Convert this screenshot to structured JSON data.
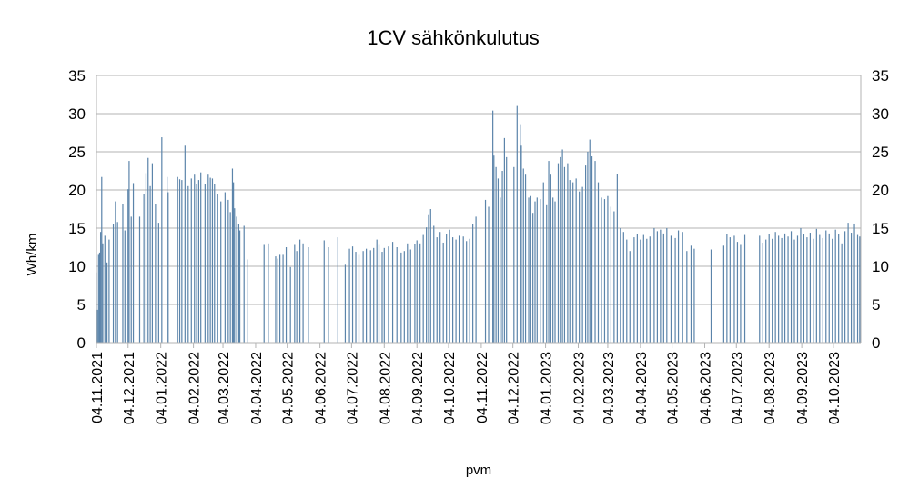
{
  "chart_data": {
    "type": "bar",
    "title": "1CV sähkönkulutus",
    "xlabel": "pvm",
    "ylabel": "Wh/km",
    "ylim": [
      0,
      35
    ],
    "y_ticks": [
      "0",
      "5",
      "10",
      "15",
      "20",
      "25",
      "30",
      "35"
    ],
    "secondary_y_axis": true,
    "grid": "horizontal",
    "x_range": [
      "2021-11-04",
      "2023-10-30"
    ],
    "x_tick_labels": [
      "04.11.2021",
      "04.12.2021",
      "04.01.2022",
      "04.02.2022",
      "04.03.2022",
      "04.04.2022",
      "04.05.2022",
      "04.06.2022",
      "04.07.2022",
      "04.08.2022",
      "04.09.2022",
      "04.10.2022",
      "04.11.2022",
      "04.12.2022",
      "04.01.2023",
      "04.02.2023",
      "04.03.2023",
      "04.04.2023",
      "04.05.2023",
      "04.06.2023",
      "04.07.2023",
      "04.08.2023",
      "04.09.2023",
      "04.10.2023"
    ],
    "x_tick_dates": [
      "2021-11-04",
      "2021-12-04",
      "2022-01-04",
      "2022-02-04",
      "2022-03-04",
      "2022-04-04",
      "2022-05-04",
      "2022-06-04",
      "2022-07-04",
      "2022-08-04",
      "2022-09-04",
      "2022-10-04",
      "2022-11-04",
      "2022-12-04",
      "2023-01-04",
      "2023-02-04",
      "2023-03-04",
      "2023-04-04",
      "2023-05-04",
      "2023-06-04",
      "2023-07-04",
      "2023-08-04",
      "2023-09-04",
      "2023-10-04"
    ],
    "bar_color": "#5b84aa",
    "points": [
      [
        "2021-11-04",
        9.2
      ],
      [
        "2021-11-05",
        4.3
      ],
      [
        "2021-11-06",
        11.5
      ],
      [
        "2021-11-07",
        11.8
      ],
      [
        "2021-11-08",
        14.5
      ],
      [
        "2021-11-09",
        21.7
      ],
      [
        "2021-11-10",
        13.0
      ],
      [
        "2021-11-12",
        14.0
      ],
      [
        "2021-11-14",
        10.5
      ],
      [
        "2021-11-16",
        13.5
      ],
      [
        "2021-11-20",
        15.5
      ],
      [
        "2021-11-22",
        18.5
      ],
      [
        "2021-11-24",
        15.8
      ],
      [
        "2021-11-29",
        18.1
      ],
      [
        "2021-12-01",
        14.7
      ],
      [
        "2021-12-04",
        20.1
      ],
      [
        "2021-12-05",
        23.8
      ],
      [
        "2021-12-07",
        16.5
      ],
      [
        "2021-12-09",
        20.9
      ],
      [
        "2021-12-15",
        16.5
      ],
      [
        "2021-12-19",
        19.5
      ],
      [
        "2021-12-21",
        22.2
      ],
      [
        "2021-12-23",
        24.2
      ],
      [
        "2021-12-25",
        20.5
      ],
      [
        "2021-12-27",
        23.5
      ],
      [
        "2021-12-30",
        18.1
      ],
      [
        "2022-01-02",
        15.7
      ],
      [
        "2022-01-05",
        26.9
      ],
      [
        "2022-01-10",
        21.7
      ],
      [
        "2022-01-11",
        19.7
      ],
      [
        "2022-01-20",
        21.7
      ],
      [
        "2022-01-22",
        21.4
      ],
      [
        "2022-01-24",
        21.3
      ],
      [
        "2022-01-27",
        25.8
      ],
      [
        "2022-01-30",
        20.5
      ],
      [
        "2022-02-02",
        21.5
      ],
      [
        "2022-02-05",
        22.0
      ],
      [
        "2022-02-07",
        20.8
      ],
      [
        "2022-02-09",
        21.3
      ],
      [
        "2022-02-11",
        22.3
      ],
      [
        "2022-02-15",
        20.8
      ],
      [
        "2022-02-18",
        22.0
      ],
      [
        "2022-02-20",
        21.6
      ],
      [
        "2022-02-22",
        21.5
      ],
      [
        "2022-02-24",
        20.8
      ],
      [
        "2022-02-27",
        19.5
      ],
      [
        "2022-03-02",
        18.5
      ],
      [
        "2022-03-06",
        19.7
      ],
      [
        "2022-03-09",
        18.7
      ],
      [
        "2022-03-11",
        17.1
      ],
      [
        "2022-03-13",
        22.8
      ],
      [
        "2022-03-14",
        21.0
      ],
      [
        "2022-03-15",
        17.6
      ],
      [
        "2022-03-17",
        16.5
      ],
      [
        "2022-03-19",
        15.5
      ],
      [
        "2022-03-20",
        14.7
      ],
      [
        "2022-03-24",
        15.3
      ],
      [
        "2022-03-27",
        10.9
      ],
      [
        "2022-04-12",
        12.8
      ],
      [
        "2022-04-16",
        13.0
      ],
      [
        "2022-04-23",
        11.3
      ],
      [
        "2022-04-25",
        11.0
      ],
      [
        "2022-04-27",
        11.5
      ],
      [
        "2022-04-30",
        11.5
      ],
      [
        "2022-05-03",
        12.5
      ],
      [
        "2022-05-07",
        9.9
      ],
      [
        "2022-05-11",
        12.8
      ],
      [
        "2022-05-13",
        12.0
      ],
      [
        "2022-05-16",
        13.5
      ],
      [
        "2022-05-19",
        13.0
      ],
      [
        "2022-05-24",
        12.5
      ],
      [
        "2022-06-08",
        13.4
      ],
      [
        "2022-06-12",
        12.5
      ],
      [
        "2022-06-21",
        13.8
      ],
      [
        "2022-06-28",
        10.2
      ],
      [
        "2022-07-02",
        12.3
      ],
      [
        "2022-07-05",
        12.6
      ],
      [
        "2022-07-08",
        11.9
      ],
      [
        "2022-07-11",
        11.5
      ],
      [
        "2022-07-15",
        12.0
      ],
      [
        "2022-07-18",
        12.3
      ],
      [
        "2022-07-22",
        12.1
      ],
      [
        "2022-07-25",
        12.4
      ],
      [
        "2022-07-28",
        13.5
      ],
      [
        "2022-07-30",
        12.8
      ],
      [
        "2022-08-02",
        11.9
      ],
      [
        "2022-08-04",
        12.4
      ],
      [
        "2022-08-08",
        12.6
      ],
      [
        "2022-08-12",
        13.2
      ],
      [
        "2022-08-16",
        12.5
      ],
      [
        "2022-08-20",
        11.8
      ],
      [
        "2022-08-23",
        12.0
      ],
      [
        "2022-08-26",
        13.0
      ],
      [
        "2022-08-29",
        12.2
      ],
      [
        "2022-09-02",
        12.9
      ],
      [
        "2022-09-04",
        13.4
      ],
      [
        "2022-09-07",
        13.0
      ],
      [
        "2022-09-10",
        14.1
      ],
      [
        "2022-09-13",
        15.1
      ],
      [
        "2022-09-15",
        16.7
      ],
      [
        "2022-09-17",
        17.5
      ],
      [
        "2022-09-20",
        15.3
      ],
      [
        "2022-09-23",
        13.8
      ],
      [
        "2022-09-26",
        14.5
      ],
      [
        "2022-09-29",
        13.1
      ],
      [
        "2022-10-02",
        14.2
      ],
      [
        "2022-10-05",
        14.8
      ],
      [
        "2022-10-08",
        13.8
      ],
      [
        "2022-10-11",
        13.5
      ],
      [
        "2022-10-14",
        14.0
      ],
      [
        "2022-10-18",
        13.9
      ],
      [
        "2022-10-21",
        13.3
      ],
      [
        "2022-10-24",
        13.6
      ],
      [
        "2022-10-27",
        15.5
      ],
      [
        "2022-10-30",
        16.5
      ],
      [
        "2022-11-08",
        18.7
      ],
      [
        "2022-11-11",
        17.8
      ],
      [
        "2022-11-15",
        30.4
      ],
      [
        "2022-11-16",
        24.5
      ],
      [
        "2022-11-18",
        23.0
      ],
      [
        "2022-11-20",
        21.5
      ],
      [
        "2022-11-22",
        19.0
      ],
      [
        "2022-11-24",
        22.5
      ],
      [
        "2022-11-26",
        26.8
      ],
      [
        "2022-11-28",
        24.3
      ],
      [
        "2022-12-05",
        23.0
      ],
      [
        "2022-12-08",
        31.0
      ],
      [
        "2022-12-11",
        28.5
      ],
      [
        "2022-12-12",
        25.8
      ],
      [
        "2022-12-14",
        22.8
      ],
      [
        "2022-12-16",
        22.0
      ],
      [
        "2022-12-19",
        19.0
      ],
      [
        "2022-12-21",
        19.2
      ],
      [
        "2022-12-23",
        17.0
      ],
      [
        "2022-12-25",
        18.5
      ],
      [
        "2022-12-27",
        19.0
      ],
      [
        "2022-12-30",
        18.8
      ],
      [
        "2023-01-02",
        21.0
      ],
      [
        "2023-01-05",
        18.0
      ],
      [
        "2023-01-07",
        23.8
      ],
      [
        "2023-01-09",
        22.0
      ],
      [
        "2023-01-11",
        19.0
      ],
      [
        "2023-01-13",
        18.5
      ],
      [
        "2023-01-16",
        23.5
      ],
      [
        "2023-01-18",
        24.3
      ],
      [
        "2023-01-20",
        25.3
      ],
      [
        "2023-01-22",
        23.0
      ],
      [
        "2023-01-25",
        23.5
      ],
      [
        "2023-01-27",
        21.3
      ],
      [
        "2023-01-30",
        21.0
      ],
      [
        "2023-02-02",
        21.5
      ],
      [
        "2023-02-05",
        19.8
      ],
      [
        "2023-02-08",
        20.4
      ],
      [
        "2023-02-11",
        23.2
      ],
      [
        "2023-02-13",
        25.0
      ],
      [
        "2023-02-15",
        26.6
      ],
      [
        "2023-02-17",
        24.4
      ],
      [
        "2023-02-20",
        23.8
      ],
      [
        "2023-02-23",
        21.0
      ],
      [
        "2023-02-26",
        19.0
      ],
      [
        "2023-03-01",
        18.8
      ],
      [
        "2023-03-04",
        19.2
      ],
      [
        "2023-03-07",
        17.8
      ],
      [
        "2023-03-10",
        17.2
      ],
      [
        "2023-03-13",
        22.1
      ],
      [
        "2023-03-16",
        15.0
      ],
      [
        "2023-03-19",
        14.5
      ],
      [
        "2023-03-22",
        13.5
      ],
      [
        "2023-03-25",
        12.0
      ],
      [
        "2023-03-29",
        13.8
      ],
      [
        "2023-04-01",
        14.2
      ],
      [
        "2023-04-04",
        13.5
      ],
      [
        "2023-04-07",
        14.1
      ],
      [
        "2023-04-10",
        13.6
      ],
      [
        "2023-04-13",
        13.9
      ],
      [
        "2023-04-17",
        15.0
      ],
      [
        "2023-04-20",
        14.6
      ],
      [
        "2023-04-23",
        14.8
      ],
      [
        "2023-04-26",
        14.3
      ],
      [
        "2023-04-29",
        15.0
      ],
      [
        "2023-05-03",
        14.0
      ],
      [
        "2023-05-07",
        13.7
      ],
      [
        "2023-05-10",
        14.7
      ],
      [
        "2023-05-14",
        14.5
      ],
      [
        "2023-05-18",
        12.0
      ],
      [
        "2023-05-22",
        12.7
      ],
      [
        "2023-05-25",
        12.3
      ],
      [
        "2023-06-10",
        12.2
      ],
      [
        "2023-06-22",
        12.7
      ],
      [
        "2023-06-25",
        14.2
      ],
      [
        "2023-06-28",
        13.8
      ],
      [
        "2023-07-02",
        14.0
      ],
      [
        "2023-07-05",
        13.2
      ],
      [
        "2023-07-08",
        12.8
      ],
      [
        "2023-07-12",
        14.1
      ],
      [
        "2023-07-26",
        14.0
      ],
      [
        "2023-07-29",
        13.1
      ],
      [
        "2023-08-01",
        13.5
      ],
      [
        "2023-08-04",
        14.2
      ],
      [
        "2023-08-07",
        13.6
      ],
      [
        "2023-08-10",
        14.5
      ],
      [
        "2023-08-13",
        14.0
      ],
      [
        "2023-08-16",
        13.7
      ],
      [
        "2023-08-19",
        14.3
      ],
      [
        "2023-08-22",
        13.9
      ],
      [
        "2023-08-25",
        14.6
      ],
      [
        "2023-08-28",
        13.5
      ],
      [
        "2023-08-31",
        14.0
      ],
      [
        "2023-09-03",
        15.0
      ],
      [
        "2023-09-06",
        14.2
      ],
      [
        "2023-09-09",
        13.8
      ],
      [
        "2023-09-12",
        14.4
      ],
      [
        "2023-09-15",
        13.6
      ],
      [
        "2023-09-18",
        14.9
      ],
      [
        "2023-09-21",
        14.1
      ],
      [
        "2023-09-24",
        13.7
      ],
      [
        "2023-09-27",
        14.7
      ],
      [
        "2023-09-30",
        14.3
      ],
      [
        "2023-10-03",
        13.6
      ],
      [
        "2023-10-06",
        14.8
      ],
      [
        "2023-10-09",
        14.2
      ],
      [
        "2023-10-12",
        13.0
      ],
      [
        "2023-10-15",
        14.6
      ],
      [
        "2023-10-18",
        15.7
      ],
      [
        "2023-10-21",
        14.4
      ],
      [
        "2023-10-24",
        15.6
      ],
      [
        "2023-10-27",
        14.1
      ],
      [
        "2023-10-29",
        13.9
      ]
    ]
  }
}
